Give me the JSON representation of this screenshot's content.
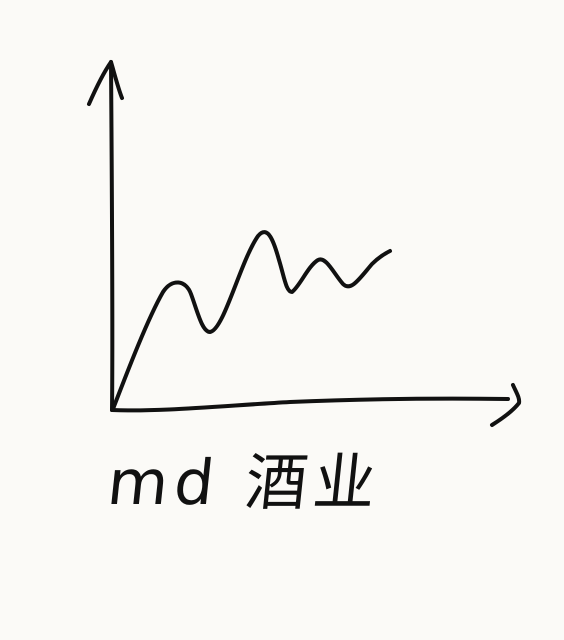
{
  "sketch": {
    "caption": "md 酒业",
    "ink_color": "#111111",
    "paper_color": "#fbfaf7"
  }
}
